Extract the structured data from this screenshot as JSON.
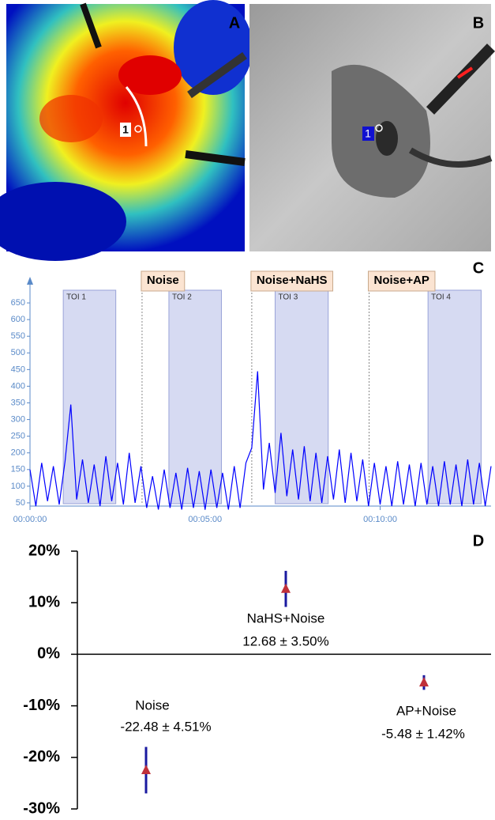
{
  "panel_labels": [
    "A",
    "B",
    "C",
    "D"
  ],
  "roi_labels": [
    "1",
    "1"
  ],
  "chart_data": [
    {
      "type": "line",
      "x": [
        0,
        10,
        20,
        30,
        40,
        50,
        60,
        70,
        80,
        90,
        100,
        110,
        120,
        130,
        140,
        150,
        160,
        170,
        180,
        190,
        200,
        210,
        220,
        230,
        240,
        250,
        260,
        270,
        280,
        290,
        300,
        310,
        320,
        330,
        340,
        350,
        360,
        370,
        380,
        390,
        400,
        410,
        420,
        430,
        440,
        450,
        460,
        470,
        480,
        490,
        500,
        510,
        520,
        530,
        540,
        550,
        560,
        570,
        580,
        590,
        600,
        610,
        620,
        630,
        640,
        650,
        660,
        670,
        680,
        690,
        700,
        710,
        720,
        730,
        740,
        750,
        760,
        770,
        780,
        790
      ],
      "series": [
        {
          "color": "#0000ff",
          "values": [
            150,
            40,
            170,
            55,
            160,
            45,
            175,
            345,
            60,
            180,
            50,
            165,
            40,
            190,
            55,
            170,
            45,
            200,
            50,
            160,
            35,
            130,
            30,
            150,
            35,
            140,
            30,
            155,
            35,
            145,
            30,
            150,
            35,
            140,
            30,
            160,
            35,
            170,
            215,
            445,
            90,
            230,
            80,
            260,
            70,
            210,
            60,
            220,
            55,
            200,
            50,
            190,
            60,
            210,
            50,
            200,
            55,
            180,
            40,
            170,
            45,
            160,
            40,
            175,
            45,
            165,
            40,
            170,
            45,
            160,
            40,
            175,
            45,
            165,
            40,
            180,
            45,
            170,
            40,
            160
          ]
        }
      ],
      "xlim": [
        0,
        790
      ],
      "xticks": [
        {
          "value": 0,
          "label": "00:00:00"
        },
        {
          "value": 300,
          "label": "00:05:00"
        },
        {
          "value": 600,
          "label": "00:10:00"
        }
      ],
      "ylim": [
        0,
        700
      ],
      "yticks": [
        50,
        100,
        150,
        200,
        250,
        300,
        350,
        400,
        450,
        500,
        550,
        600,
        650
      ],
      "regions": [
        {
          "label": "TOI 1",
          "start": 57,
          "end": 147
        },
        {
          "label": "TOI 2",
          "start": 238,
          "end": 328
        },
        {
          "label": "TOI 3",
          "start": 420,
          "end": 511
        },
        {
          "label": "TOI 4",
          "start": 682,
          "end": 773
        }
      ],
      "events": [
        {
          "label": "Noise",
          "x": 192
        },
        {
          "label": "Noise+NaHS",
          "x": 380
        },
        {
          "label": "Noise+AP",
          "x": 581
        }
      ]
    },
    {
      "type": "errorbar",
      "categories": [
        "Noise",
        "NaHS+Noise",
        "AP+Noise"
      ],
      "values": [
        -22.48,
        12.68,
        -5.48
      ],
      "errors": [
        4.51,
        3.5,
        1.42
      ],
      "value_labels": [
        "-22.48 ± 4.51%",
        "12.68 ± 3.50%",
        "-5.48 ± 1.42%"
      ],
      "color": "#1a1aa0",
      "marker_color": "#c0303a",
      "ylim": [
        -30,
        20
      ],
      "yticks": [
        {
          "value": 20,
          "label": "20%"
        },
        {
          "value": 10,
          "label": "10%"
        },
        {
          "value": 0,
          "label": "0%"
        },
        {
          "value": -10,
          "label": "-10%"
        },
        {
          "value": -20,
          "label": "-20%"
        },
        {
          "value": -30,
          "label": "-30%"
        }
      ]
    }
  ]
}
